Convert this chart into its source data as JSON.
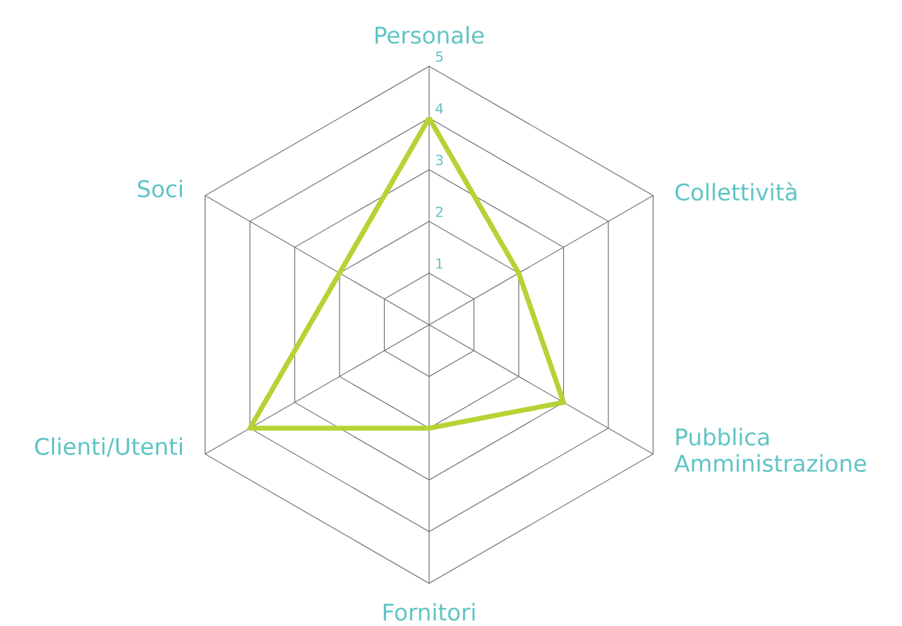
{
  "chart_data": {
    "type": "radar",
    "categories": [
      "Personale",
      "Collettività",
      "Pubblica Amministrazione",
      "Fornitori",
      "Clienti/Utenti",
      "Soci"
    ],
    "series": [
      {
        "color": "#b5d334",
        "values": [
          4,
          2,
          3,
          2,
          4,
          2
        ]
      }
    ],
    "ylim": [
      0,
      5
    ],
    "yticks": [
      1,
      2,
      3,
      4,
      5
    ],
    "grid": true
  }
}
